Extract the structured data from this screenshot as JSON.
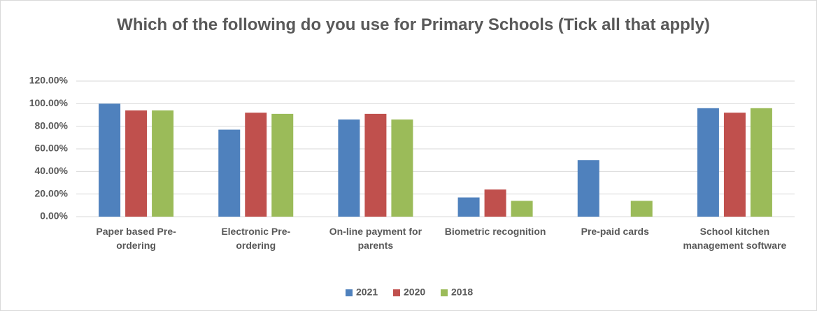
{
  "chart_data": {
    "type": "bar",
    "title": "Which of the following do you use for Primary Schools (Tick all that apply)",
    "categories": [
      "Paper based Pre-ordering",
      "Electronic Pre-ordering",
      "On-line payment for parents",
      "Biometric recognition",
      "Pre-paid cards",
      "School kitchen management software"
    ],
    "series": [
      {
        "name": "2021",
        "color": "#4f81bd",
        "values": [
          100,
          77,
          86,
          17,
          50,
          96
        ]
      },
      {
        "name": "2020",
        "color": "#c0504d",
        "values": [
          94,
          92,
          91,
          24,
          0,
          92
        ]
      },
      {
        "name": "2018",
        "color": "#9bbb59",
        "values": [
          94,
          91,
          86,
          14,
          14,
          96
        ]
      }
    ],
    "ylim": [
      0,
      120
    ],
    "yticks": [
      {
        "value": 0,
        "label": "0.00%"
      },
      {
        "value": 20,
        "label": "20.00%"
      },
      {
        "value": 40,
        "label": "40.00%"
      },
      {
        "value": 60,
        "label": "60.00%"
      },
      {
        "value": 80,
        "label": "80.00%"
      },
      {
        "value": 100,
        "label": "100.00%"
      },
      {
        "value": 120,
        "label": "120.00%"
      }
    ],
    "grid": true,
    "legend": "bottom"
  }
}
